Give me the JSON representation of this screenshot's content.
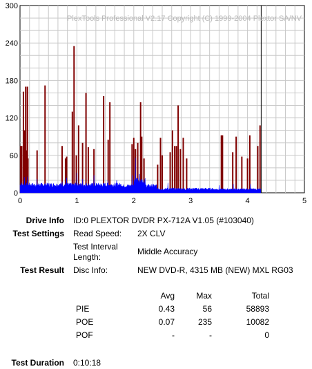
{
  "chart_data": {
    "type": "bar",
    "watermark": "PlexTools Professional V2.17 Copyright (C) 1999-2004 Plextor SA/NV",
    "y_ticks": [
      "300",
      "240",
      "180",
      "120",
      "60",
      "0"
    ],
    "x_ticks": [
      "0",
      "1",
      "2",
      "3",
      "4",
      "5"
    ],
    "ylim": [
      0,
      300
    ],
    "xlim": [
      0,
      5
    ],
    "grid": true,
    "end_marker_x": 4.24,
    "series": [
      {
        "name": "POE",
        "color": "#800000",
        "x": [
          0.01,
          0.03,
          0.06,
          0.08,
          0.1,
          0.12,
          0.13,
          0.14,
          0.3,
          0.44,
          0.74,
          0.8,
          0.82,
          0.92,
          0.95,
          0.99,
          1.03,
          1.1,
          1.16,
          1.2,
          1.3,
          1.47,
          1.55,
          1.58,
          1.97,
          2.0,
          2.03,
          2.07,
          2.12,
          2.14,
          2.18,
          2.42,
          2.47,
          2.5,
          2.64,
          2.68,
          2.72,
          2.75,
          2.78,
          2.82,
          2.87,
          2.93,
          3.54,
          3.56,
          3.74,
          3.8,
          3.9,
          4.0,
          4.04,
          4.18,
          4.22
        ],
        "y": [
          75,
          75,
          162,
          100,
          170,
          68,
          170,
          55,
          68,
          172,
          75,
          55,
          58,
          130,
          235,
          60,
          108,
          80,
          160,
          73,
          70,
          155,
          85,
          145,
          78,
          88,
          70,
          80,
          145,
          90,
          55,
          45,
          88,
          60,
          65,
          100,
          75,
          75,
          140,
          70,
          88,
          55,
          92,
          92,
          65,
          90,
          58,
          55,
          92,
          75,
          108
        ]
      },
      {
        "name": "PIE",
        "color": "#0000ff",
        "peaks_x": [
          0.02,
          0.08,
          0.13,
          0.3,
          0.74,
          0.82,
          1.0,
          1.1,
          1.3,
          1.55,
          1.7,
          1.97,
          2.03,
          2.1,
          2.6,
          3.5,
          3.75,
          4.05
        ],
        "peaks_y": [
          18,
          25,
          26,
          22,
          18,
          24,
          32,
          22,
          28,
          20,
          20,
          28,
          56,
          30,
          16,
          12,
          14,
          14
        ]
      }
    ]
  },
  "drive_info": {
    "label": "Drive Info",
    "value": "ID:0 PLEXTOR DVDR PX-712A V1.05 (#103040)"
  },
  "test_settings": {
    "label": "Test Settings",
    "read_speed_label": "Read Speed:",
    "read_speed_value": "2X CLV",
    "interval_label_line1": "Test Interval",
    "interval_label_line2": "Length:",
    "interval_value": "Middle Accuracy"
  },
  "test_result": {
    "label": "Test Result",
    "disc_info_label": "Disc Info:",
    "disc_info_value": "NEW DVD-R, 4315 MB (NEW) MXL RG03",
    "headers": {
      "avg": "Avg",
      "max": "Max",
      "total": "Total"
    },
    "rows": [
      {
        "name": "PIE",
        "avg": "0.43",
        "max": "56",
        "total": "58893"
      },
      {
        "name": "POE",
        "avg": "0.07",
        "max": "235",
        "total": "10082"
      },
      {
        "name": "POF",
        "avg": "-",
        "max": "-",
        "total": "0"
      }
    ]
  },
  "test_duration": {
    "label": "Test Duration",
    "value": "0:10:18"
  }
}
